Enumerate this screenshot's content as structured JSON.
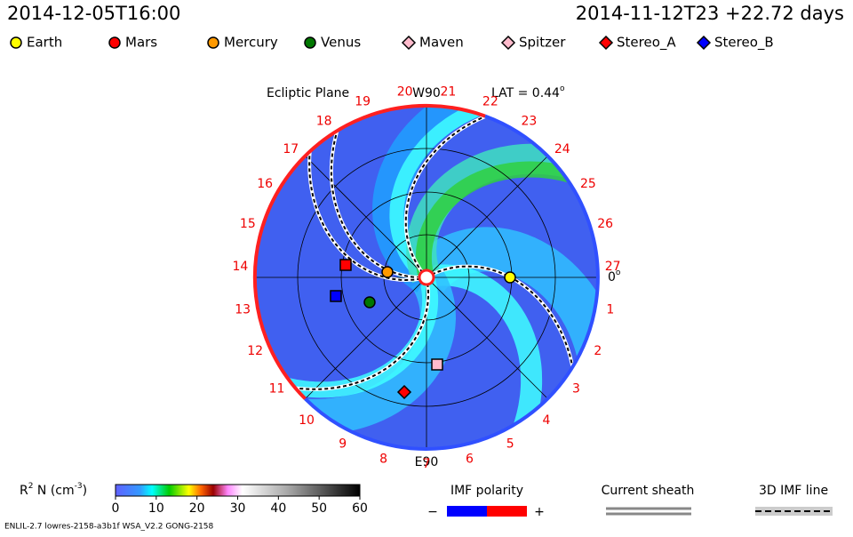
{
  "header": {
    "date": "2014-12-05T16:00",
    "run": "2014-11-12T23 +22.72 days"
  },
  "legend": [
    {
      "label": "Earth",
      "color": "#ffff00",
      "shape": "circle"
    },
    {
      "label": "Mars",
      "color": "#ff0000",
      "shape": "circle"
    },
    {
      "label": "Mercury",
      "color": "#ff9900",
      "shape": "circle"
    },
    {
      "label": "Venus",
      "color": "#007700",
      "shape": "circle"
    },
    {
      "label": "Maven",
      "color": "#ffbbcc",
      "shape": "diamond"
    },
    {
      "label": "Spitzer",
      "color": "#ffbbcc",
      "shape": "diamond"
    },
    {
      "label": "Stereo_A",
      "color": "#ff0000",
      "shape": "diamond"
    },
    {
      "label": "Stereo_B",
      "color": "#0000ff",
      "shape": "diamond"
    }
  ],
  "plot": {
    "title": "Ecliptic Plane",
    "top": "W90",
    "bottom": "E90",
    "lat": "LAT = 0.44",
    "lat_sup": "o",
    "right": "0",
    "right_sup": "o",
    "carrington_labels": [
      "1",
      "2",
      "3",
      "4",
      "5",
      "6",
      "7",
      "8",
      "9",
      "10",
      "11",
      "12",
      "13",
      "14",
      "15",
      "16",
      "17",
      "18",
      "19",
      "20",
      "21",
      "22",
      "23",
      "24",
      "25",
      "26",
      "27"
    ]
  },
  "colorbar": {
    "label_parts": [
      "R",
      "2",
      " N (cm",
      "-3",
      ")"
    ],
    "lim": [
      0,
      60
    ],
    "ticks": [
      0,
      10,
      20,
      30,
      40,
      50,
      60
    ]
  },
  "imf": {
    "title": "IMF polarity",
    "minus": "−",
    "plus": "+"
  },
  "sheath": {
    "title": "Current sheath"
  },
  "imf_line": {
    "title": "3D IMF line"
  },
  "footer": "ENLIL-2.7 lowres-2158-a3b1f WSA_V2.2 GONG-2158"
}
